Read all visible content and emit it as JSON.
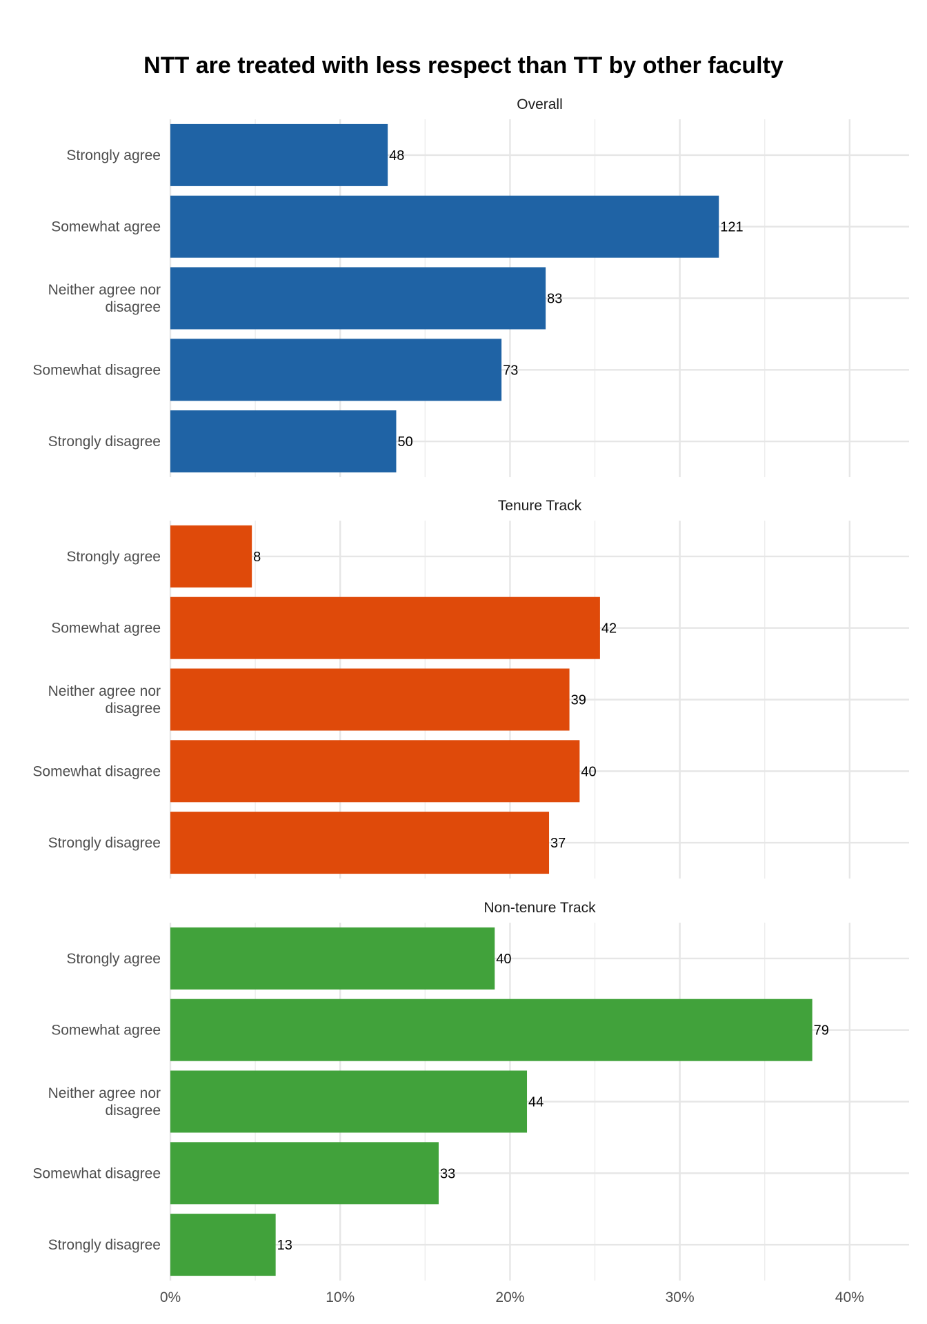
{
  "chart_data": {
    "type": "bar",
    "orientation": "horizontal",
    "title": "NTT are treated with less respect than TT by other faculty",
    "categories": [
      "Strongly agree",
      "Somewhat agree",
      "Neither agree nor disagree",
      "Somewhat disagree",
      "Strongly disagree"
    ],
    "category_lines": [
      [
        "Strongly agree"
      ],
      [
        "Somewhat agree"
      ],
      [
        "Neither agree nor",
        "disagree"
      ],
      [
        "Somewhat disagree"
      ],
      [
        "Strongly disagree"
      ]
    ],
    "xlim": [
      0,
      0.435
    ],
    "xticks": [
      0,
      0.1,
      0.2,
      0.3,
      0.4
    ],
    "xtick_labels": [
      "0%",
      "10%",
      "20%",
      "30%",
      "40%"
    ],
    "grid": true,
    "panels": [
      {
        "name": "Overall",
        "color": "#1f63a5",
        "percents": [
          0.128,
          0.323,
          0.221,
          0.195,
          0.133
        ],
        "counts": [
          48,
          121,
          83,
          73,
          50
        ]
      },
      {
        "name": "Tenure Track",
        "color": "#df4a0a",
        "percents": [
          0.048,
          0.253,
          0.235,
          0.241,
          0.223
        ],
        "counts": [
          8,
          42,
          39,
          40,
          37
        ]
      },
      {
        "name": "Non-tenure Track",
        "color": "#41a23b",
        "percents": [
          0.191,
          0.378,
          0.21,
          0.158,
          0.062
        ],
        "counts": [
          40,
          79,
          44,
          33,
          13
        ]
      }
    ]
  }
}
